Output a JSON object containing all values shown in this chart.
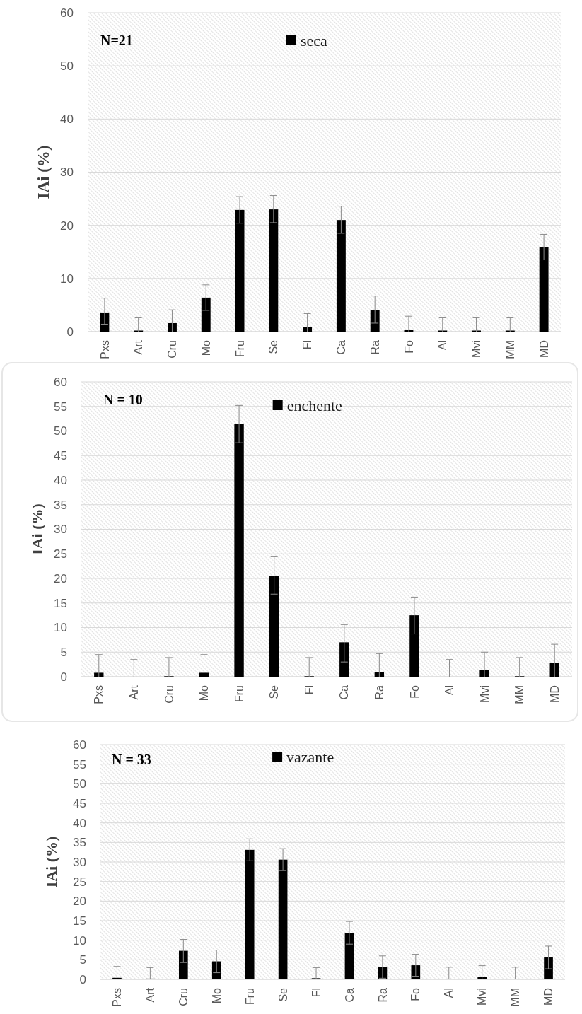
{
  "chart_data": [
    {
      "type": "bar",
      "categories": [
        "Pxs",
        "Art",
        "Cru",
        "Mo",
        "Fru",
        "Se",
        "Fl",
        "Ca",
        "Ra",
        "Fo",
        "Al",
        "Mvi",
        "MM",
        "MD"
      ],
      "series": [
        {
          "name": "seca",
          "color": "#000000",
          "values": [
            3.6,
            0.2,
            1.6,
            6.4,
            22.9,
            23.0,
            0.8,
            21.0,
            4.1,
            0.4,
            0.2,
            0.2,
            0.2,
            15.9
          ],
          "errors": [
            [
              1.4,
              6.3
            ],
            [
              0,
              2.6
            ],
            [
              0,
              4.1
            ],
            [
              4.0,
              8.8
            ],
            [
              20.4,
              25.4
            ],
            [
              20.5,
              25.6
            ],
            [
              0,
              3.4
            ],
            [
              18.5,
              23.6
            ],
            [
              1.6,
              6.7
            ],
            [
              0,
              2.9
            ],
            [
              0,
              2.6
            ],
            [
              0,
              2.6
            ],
            [
              0,
              2.6
            ],
            [
              13.5,
              18.3
            ]
          ]
        }
      ],
      "ylabel": "IAi (%)",
      "ylim": [
        0,
        60
      ],
      "yticks": [
        0,
        10,
        20,
        30,
        40,
        50,
        60
      ],
      "grid": "y",
      "legend": "top",
      "annotations": [
        "N=21"
      ]
    },
    {
      "type": "bar",
      "categories": [
        "Pxs",
        "Art",
        "Cru",
        "Mo",
        "Fru",
        "Se",
        "Fl",
        "Ca",
        "Ra",
        "Fo",
        "Al",
        "Mvi",
        "MM",
        "MD"
      ],
      "series": [
        {
          "name": "enchente",
          "color": "#000000",
          "values": [
            0.8,
            0,
            0.1,
            0.8,
            51.4,
            20.5,
            0.1,
            7.0,
            1.0,
            12.5,
            0,
            1.3,
            0.1,
            2.8
          ],
          "errors": [
            [
              0,
              4.5
            ],
            [
              0,
              3.5
            ],
            [
              0,
              3.9
            ],
            [
              0,
              4.5
            ],
            [
              47.6,
              55.2
            ],
            [
              16.8,
              24.4
            ],
            [
              0,
              3.9
            ],
            [
              3.0,
              10.6
            ],
            [
              0,
              4.7
            ],
            [
              8.7,
              16.2
            ],
            [
              0,
              3.5
            ],
            [
              0,
              5.0
            ],
            [
              0,
              3.9
            ],
            [
              0,
              6.6
            ]
          ]
        }
      ],
      "ylabel": "IAi (%)",
      "ylim": [
        0,
        60
      ],
      "yticks": [
        0,
        5,
        10,
        15,
        20,
        25,
        30,
        35,
        40,
        45,
        50,
        55,
        60
      ],
      "grid": "y",
      "legend": "top",
      "annotations": [
        "N = 10"
      ]
    },
    {
      "type": "bar",
      "categories": [
        "Pxs",
        "Art",
        "Cru",
        "Mo",
        "Fru",
        "Se",
        "Fl",
        "Ca",
        "Ra",
        "Fo",
        "Al",
        "Mvi",
        "MM",
        "MD"
      ],
      "series": [
        {
          "name": "vazante",
          "color": "#000000",
          "values": [
            0.4,
            0.2,
            7.3,
            4.6,
            33.1,
            30.6,
            0.3,
            11.9,
            3.1,
            3.6,
            0,
            0.6,
            0,
            5.6
          ],
          "errors": [
            [
              0,
              3.3
            ],
            [
              0,
              3.0
            ],
            [
              4.3,
              10.2
            ],
            [
              1.7,
              7.5
            ],
            [
              30.3,
              35.9
            ],
            [
              27.8,
              33.4
            ],
            [
              0,
              3.0
            ],
            [
              9.0,
              14.8
            ],
            [
              0.3,
              6.0
            ],
            [
              0.8,
              6.4
            ],
            [
              0,
              3.1
            ],
            [
              0,
              3.5
            ],
            [
              0,
              3.1
            ],
            [
              2.7,
              8.5
            ]
          ]
        }
      ],
      "ylabel": "IAi (%)",
      "ylim": [
        0,
        60
      ],
      "yticks": [
        0,
        5,
        10,
        15,
        20,
        25,
        30,
        35,
        40,
        45,
        50,
        55,
        60
      ],
      "grid": "y",
      "legend": "top",
      "annotations": [
        "N = 33"
      ]
    }
  ]
}
